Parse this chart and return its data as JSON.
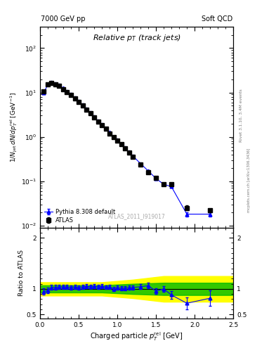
{
  "title_left": "7000 GeV pp",
  "title_right": "Soft QCD",
  "main_title": "Relative $p_T$ (track jets)",
  "watermark": "ATLAS_2011_I919017",
  "right_label1": "Rivet 3.1.10, 3.4M events",
  "right_label2": "mcplots.cern.ch [arXiv:1306.3436]",
  "xlabel": "Charged particle $p_T^{rel}$ [GeV]",
  "ylabel_main": "$1/N_{jet}\\,dN/dp_T^{rel}$ [GeV$^{-1}$]",
  "ylabel_ratio": "Ratio to ATLAS",
  "atlas_x": [
    0.05,
    0.1,
    0.15,
    0.2,
    0.25,
    0.3,
    0.35,
    0.4,
    0.45,
    0.5,
    0.55,
    0.6,
    0.65,
    0.7,
    0.75,
    0.8,
    0.85,
    0.9,
    0.95,
    1.0,
    1.05,
    1.1,
    1.15,
    1.2,
    1.3,
    1.4,
    1.5,
    1.6,
    1.7,
    1.9,
    2.2
  ],
  "atlas_y": [
    10.5,
    15.5,
    16.5,
    15.5,
    14.0,
    12.0,
    10.2,
    8.7,
    7.3,
    6.1,
    5.0,
    4.1,
    3.35,
    2.7,
    2.2,
    1.8,
    1.5,
    1.2,
    1.0,
    0.82,
    0.68,
    0.55,
    0.44,
    0.36,
    0.24,
    0.16,
    0.12,
    0.085,
    0.085,
    0.025,
    0.022
  ],
  "atlas_yerr": [
    0.4,
    0.5,
    0.5,
    0.5,
    0.4,
    0.35,
    0.3,
    0.25,
    0.2,
    0.18,
    0.15,
    0.12,
    0.1,
    0.08,
    0.07,
    0.06,
    0.05,
    0.04,
    0.03,
    0.025,
    0.02,
    0.015,
    0.012,
    0.01,
    0.007,
    0.005,
    0.004,
    0.003,
    0.005,
    0.003,
    0.002
  ],
  "pythia_x": [
    0.05,
    0.1,
    0.15,
    0.2,
    0.25,
    0.3,
    0.35,
    0.4,
    0.45,
    0.5,
    0.55,
    0.6,
    0.65,
    0.7,
    0.75,
    0.8,
    0.85,
    0.9,
    0.95,
    1.0,
    1.05,
    1.1,
    1.15,
    1.2,
    1.3,
    1.4,
    1.5,
    1.6,
    1.7,
    1.9,
    2.2
  ],
  "pythia_y": [
    10.0,
    15.0,
    17.0,
    16.0,
    14.5,
    12.5,
    10.6,
    9.0,
    7.6,
    6.3,
    5.2,
    4.3,
    3.5,
    2.85,
    2.3,
    1.9,
    1.55,
    1.25,
    1.0,
    0.84,
    0.69,
    0.56,
    0.45,
    0.37,
    0.25,
    0.17,
    0.115,
    0.085,
    0.075,
    0.018,
    0.018
  ],
  "pythia_yerr": [
    0.3,
    0.4,
    0.45,
    0.4,
    0.35,
    0.3,
    0.25,
    0.22,
    0.18,
    0.15,
    0.12,
    0.1,
    0.085,
    0.07,
    0.06,
    0.05,
    0.04,
    0.032,
    0.028,
    0.022,
    0.018,
    0.015,
    0.012,
    0.01,
    0.007,
    0.005,
    0.004,
    0.003,
    0.004,
    0.002,
    0.002
  ],
  "ratio_x": [
    0.05,
    0.1,
    0.15,
    0.2,
    0.25,
    0.3,
    0.35,
    0.4,
    0.45,
    0.5,
    0.55,
    0.6,
    0.65,
    0.7,
    0.75,
    0.8,
    0.85,
    0.9,
    0.95,
    1.0,
    1.05,
    1.1,
    1.15,
    1.2,
    1.3,
    1.4,
    1.5,
    1.6,
    1.7,
    1.9,
    2.2
  ],
  "ratio_y": [
    0.95,
    0.97,
    1.03,
    1.03,
    1.04,
    1.04,
    1.04,
    1.03,
    1.04,
    1.03,
    1.04,
    1.05,
    1.045,
    1.055,
    1.045,
    1.055,
    1.033,
    1.042,
    1.0,
    1.024,
    1.015,
    1.018,
    1.023,
    1.028,
    1.042,
    1.063,
    0.958,
    1.0,
    0.882,
    0.72,
    0.818
  ],
  "ratio_yerr": [
    0.06,
    0.05,
    0.05,
    0.05,
    0.045,
    0.045,
    0.04,
    0.04,
    0.04,
    0.04,
    0.038,
    0.038,
    0.038,
    0.042,
    0.04,
    0.042,
    0.038,
    0.042,
    0.04,
    0.042,
    0.04,
    0.042,
    0.042,
    0.045,
    0.05,
    0.055,
    0.055,
    0.06,
    0.08,
    0.12,
    0.15
  ],
  "green_band_x": [
    0.0,
    0.4,
    0.8,
    1.2,
    1.6,
    2.5
  ],
  "green_band_ylow": [
    0.93,
    0.93,
    0.93,
    0.9,
    0.88,
    0.88
  ],
  "green_band_yhigh": [
    1.07,
    1.07,
    1.07,
    1.1,
    1.12,
    1.12
  ],
  "yellow_band_x": [
    0.0,
    0.4,
    0.8,
    1.2,
    1.6,
    2.5
  ],
  "yellow_band_ylow": [
    0.87,
    0.87,
    0.87,
    0.82,
    0.75,
    0.75
  ],
  "yellow_band_yhigh": [
    1.13,
    1.13,
    1.13,
    1.18,
    1.25,
    1.25
  ],
  "ylim_main": [
    0.009,
    300
  ],
  "ylim_ratio": [
    0.42,
    2.2
  ],
  "xlim": [
    0.0,
    2.5
  ],
  "color_atlas": "black",
  "color_pythia": "blue",
  "color_green": "#00bb00",
  "color_yellow": "#ffff00",
  "marker_atlas": "s",
  "marker_pythia": "^",
  "figsize": [
    3.93,
    5.12
  ],
  "dpi": 100
}
